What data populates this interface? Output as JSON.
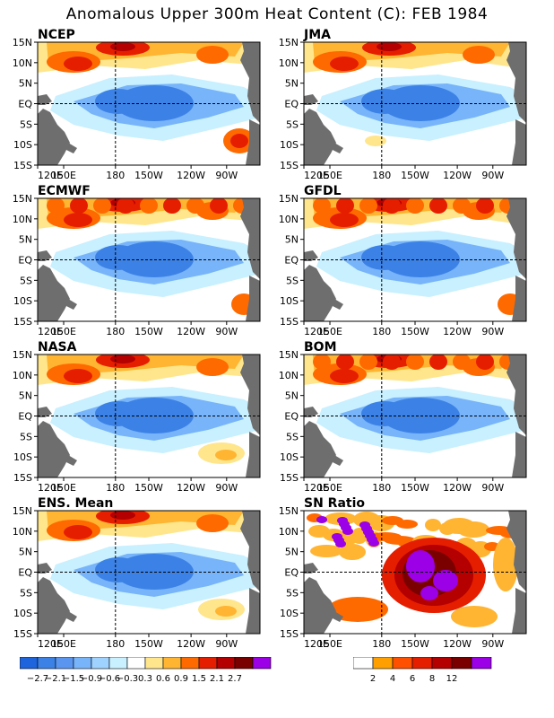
{
  "title": "Anomalous Upper 300m Heat Content (C): FEB 1984",
  "y_ticks": [
    "15N",
    "10N",
    "5N",
    "EQ",
    "5S",
    "10S",
    "15S"
  ],
  "x_ticks": [
    "120E",
    "150E",
    "180",
    "150W",
    "120W",
    "90W"
  ],
  "panels": [
    {
      "label": "NCEP"
    },
    {
      "label": "JMA"
    },
    {
      "label": "ECMWF"
    },
    {
      "label": "GFDL"
    },
    {
      "label": "NASA"
    },
    {
      "label": "BOM"
    },
    {
      "label": "ENS. Mean"
    },
    {
      "label": "SN Ratio"
    }
  ],
  "colorbar_anomaly": {
    "labels": [
      "−2.7",
      "−2.1",
      "−1.5",
      "−0.9",
      "−0.6",
      "−0.3",
      "0.3",
      "0.6",
      "0.9",
      "1.5",
      "2.1",
      "2.7"
    ],
    "colors": [
      "#1e64dc",
      "#3c82e6",
      "#5a96f0",
      "#78b4fa",
      "#a0d2ff",
      "#c8f0ff",
      "#ffffff",
      "#ffe68c",
      "#ffb432",
      "#ff6a00",
      "#e61e00",
      "#b40000",
      "#7a0000",
      "#9b00e6"
    ]
  },
  "colorbar_sn": {
    "labels": [
      "2",
      "4",
      "6",
      "8",
      "12"
    ],
    "colors": [
      "#ffffff",
      "#ffa000",
      "#ff5000",
      "#e61e00",
      "#b40000",
      "#7a0000",
      "#9b00e6"
    ]
  },
  "colors": {
    "land": "#6e6e6e",
    "neg_light": "#c8f0ff",
    "neg_mid": "#78b4fa",
    "neg_deep": "#3c82e6",
    "pos_light": "#ffe68c",
    "pos_mid": "#ffb432",
    "pos_warm": "#ff6a00",
    "pos_hot": "#e61e00",
    "pos_max": "#b40000",
    "purple": "#9b00e6"
  }
}
